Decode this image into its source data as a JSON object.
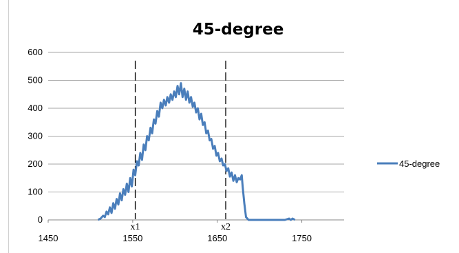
{
  "chart_data": {
    "type": "line",
    "title": "45-degree",
    "xlabel": "",
    "ylabel": "",
    "xlim": [
      1450,
      1800
    ],
    "ylim": [
      0,
      600
    ],
    "xticks": [
      1450,
      1550,
      1650,
      1750
    ],
    "yticks": [
      0,
      100,
      200,
      300,
      400,
      500,
      600
    ],
    "grid": "horizontal",
    "legend_position": "right",
    "series": [
      {
        "name": "45-degree",
        "color": "#4a7ebb",
        "x": [
          1509,
          1512,
          1515,
          1517,
          1519,
          1521,
          1523,
          1525,
          1527,
          1529,
          1531,
          1533,
          1535,
          1537,
          1539,
          1541,
          1543,
          1545,
          1547,
          1549,
          1551,
          1553,
          1555,
          1557,
          1559,
          1561,
          1563,
          1565,
          1567,
          1569,
          1571,
          1573,
          1575,
          1577,
          1579,
          1581,
          1583,
          1585,
          1587,
          1589,
          1591,
          1593,
          1595,
          1597,
          1599,
          1601,
          1603,
          1605,
          1607,
          1609,
          1611,
          1613,
          1615,
          1617,
          1619,
          1621,
          1623,
          1625,
          1627,
          1629,
          1631,
          1633,
          1635,
          1637,
          1639,
          1641,
          1643,
          1645,
          1647,
          1649,
          1651,
          1653,
          1655,
          1657,
          1659,
          1661,
          1663,
          1665,
          1667,
          1669,
          1671,
          1673,
          1675,
          1677,
          1679,
          1680,
          1682,
          1684,
          1687,
          1690,
          1700,
          1710,
          1720,
          1730,
          1735,
          1737,
          1739,
          1742
        ],
        "values": [
          0,
          5,
          15,
          10,
          30,
          20,
          45,
          25,
          60,
          40,
          75,
          55,
          95,
          70,
          110,
          90,
          130,
          100,
          150,
          120,
          180,
          160,
          210,
          195,
          240,
          215,
          270,
          250,
          300,
          285,
          330,
          310,
          360,
          345,
          390,
          370,
          420,
          400,
          430,
          410,
          440,
          420,
          450,
          430,
          460,
          440,
          480,
          450,
          490,
          440,
          470,
          430,
          460,
          420,
          440,
          405,
          420,
          385,
          400,
          360,
          380,
          340,
          350,
          310,
          320,
          285,
          290,
          255,
          265,
          230,
          240,
          210,
          220,
          195,
          200,
          175,
          185,
          155,
          170,
          140,
          160,
          135,
          150,
          145,
          160,
          120,
          60,
          10,
          0,
          0,
          0,
          0,
          0,
          0,
          5,
          0,
          5,
          0
        ]
      }
    ],
    "annotations": [
      {
        "label": "x1",
        "x": 1553
      },
      {
        "label": "x2",
        "x": 1660
      }
    ]
  }
}
